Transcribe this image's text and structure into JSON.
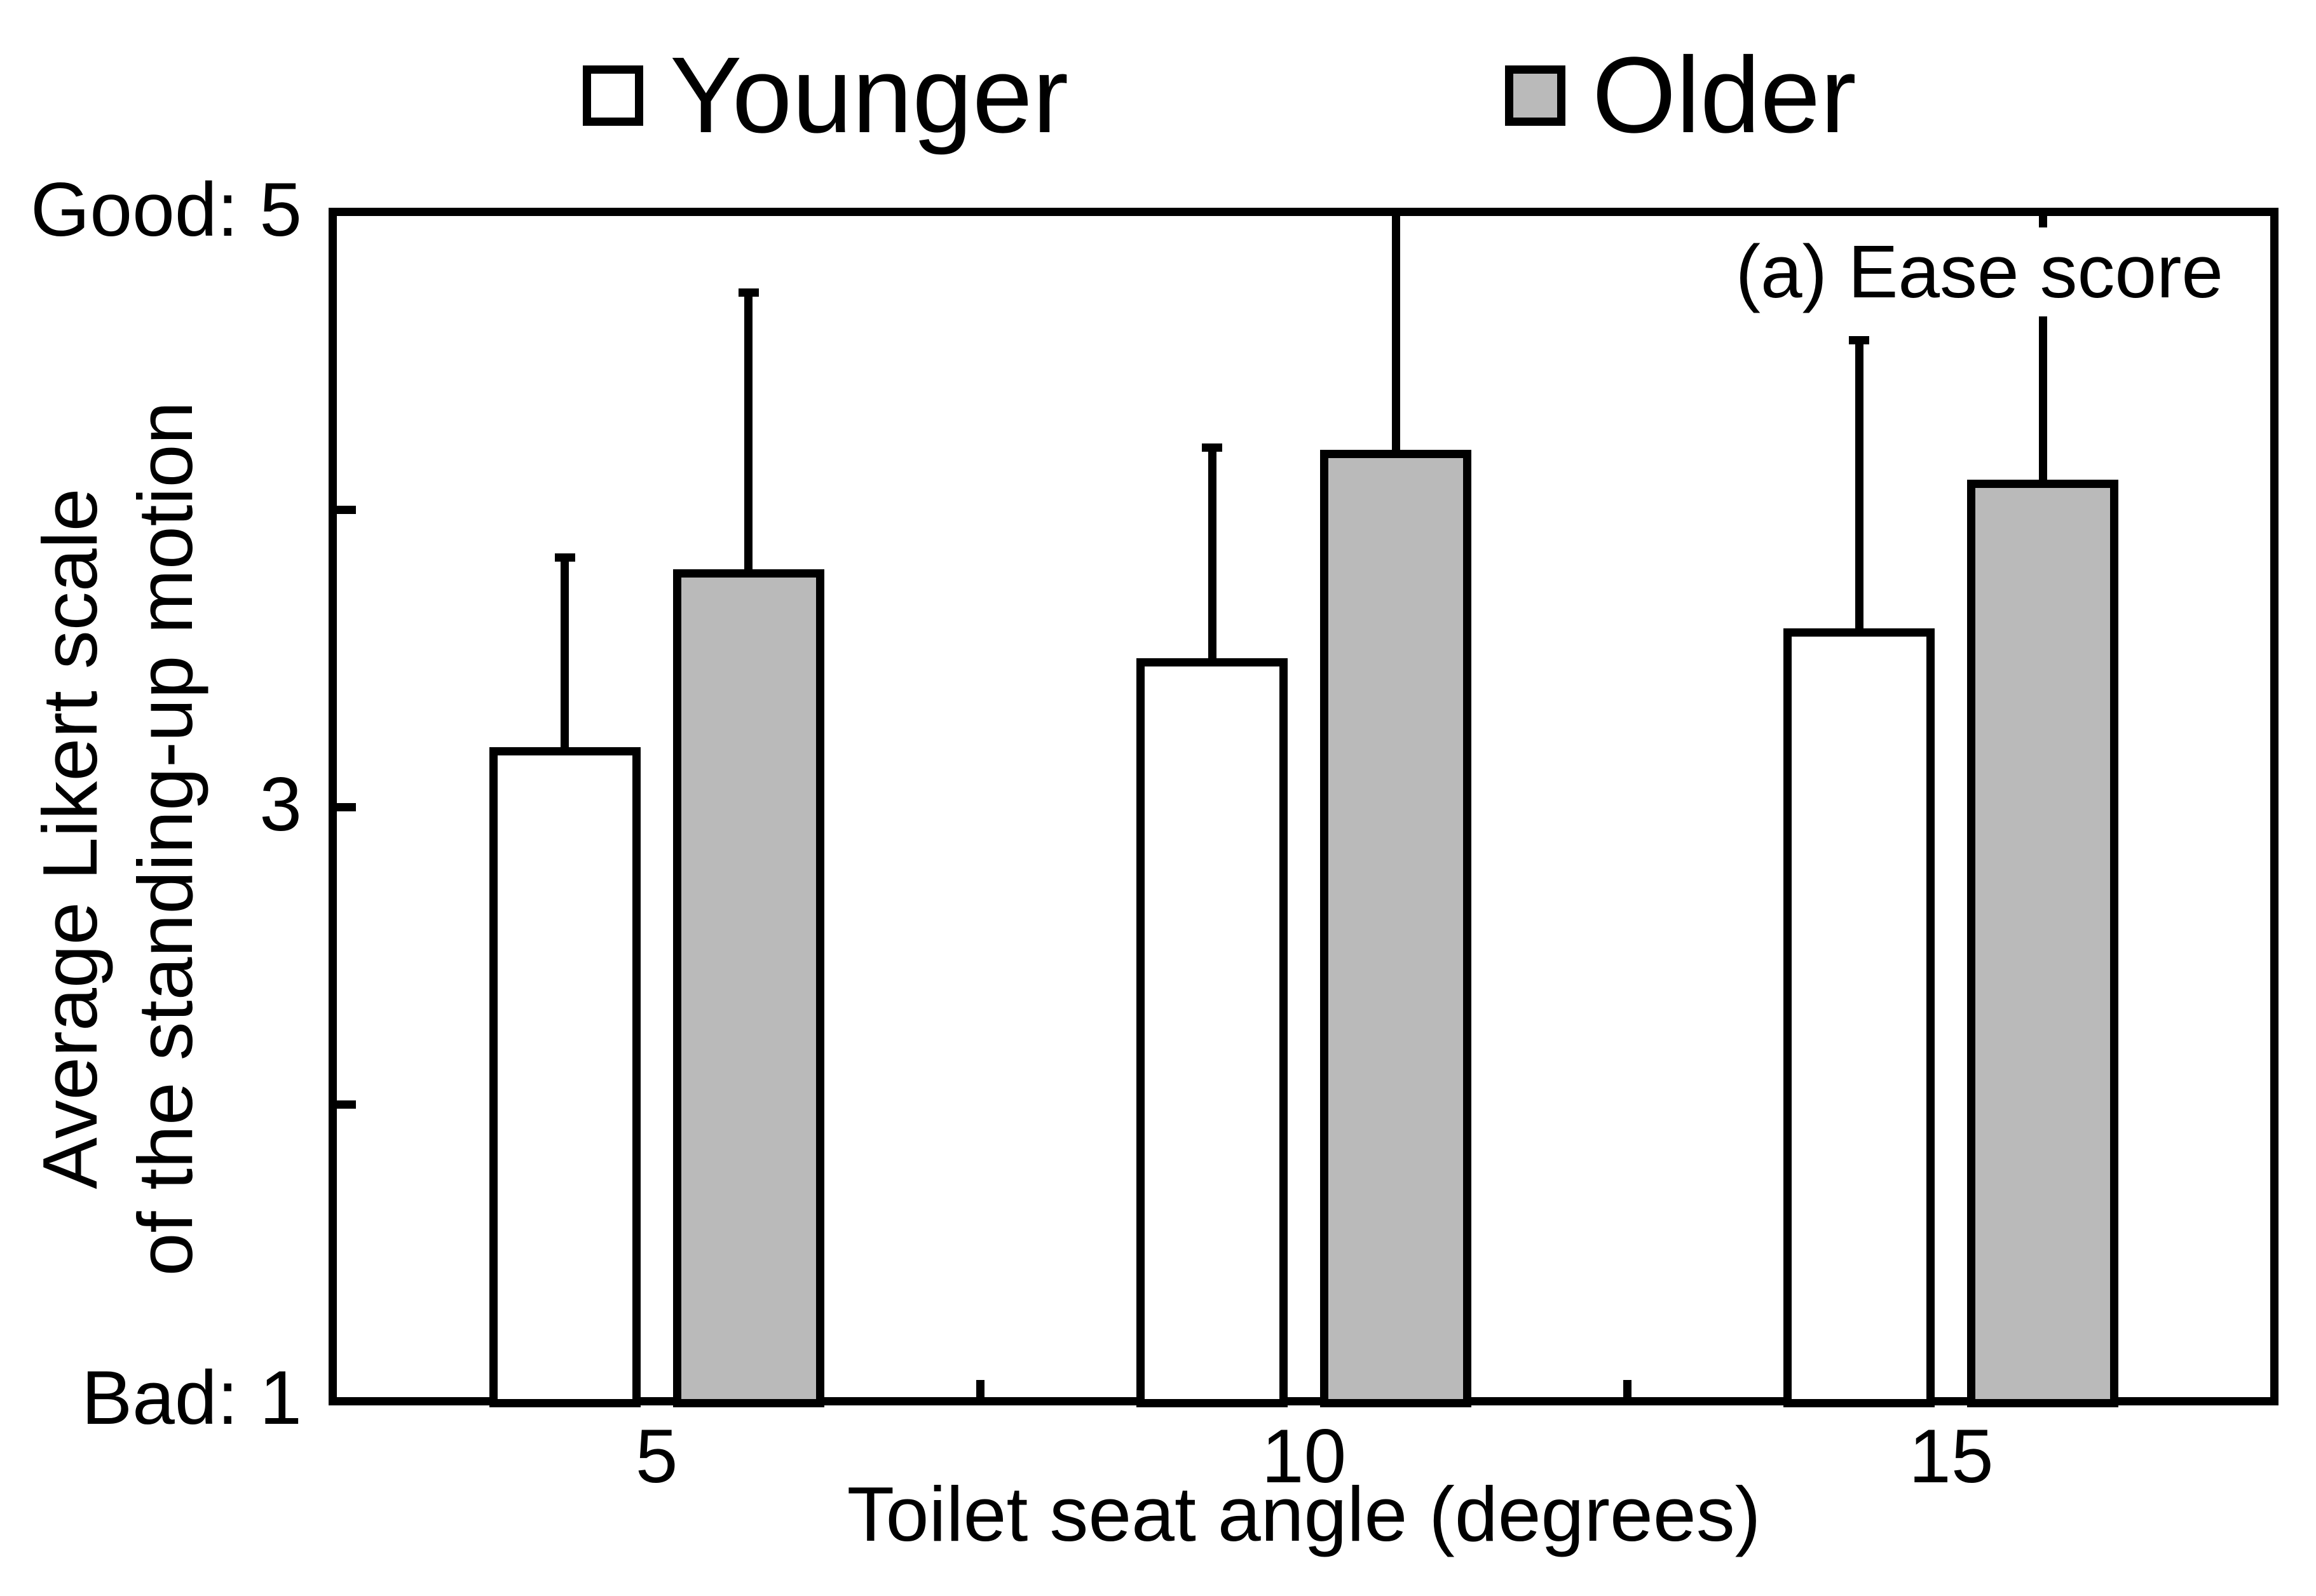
{
  "figure": {
    "panel_label": "(a) Ease score",
    "x_axis_title": "Toilet seat angle (degrees)",
    "y_axis_title_line1": "Average Likert scale",
    "y_axis_title_line2": "of the standing-up motion",
    "y_tick_top": "Good: 5",
    "y_tick_mid": "3",
    "y_tick_bottom": "Bad: 1"
  },
  "legend": {
    "younger_label": "Younger",
    "older_label": "Older"
  },
  "colors": {
    "younger_fill": "#ffffff",
    "older_fill": "#bababa",
    "ink": "#000000"
  },
  "chart_data": {
    "type": "bar",
    "categories": [
      "5",
      "10",
      "15"
    ],
    "xlabel": "Toilet seat angle (degrees)",
    "ylabel": "Average Likert scale of the standing-up motion",
    "ylim": [
      1,
      5
    ],
    "yticks": [
      1,
      2,
      3,
      4,
      5
    ],
    "ytick_labels": {
      "1": "Bad: 1",
      "3": "3",
      "5": "Good: 5"
    },
    "grid": false,
    "legend_position": "top",
    "annotation": "(a) Ease score",
    "series": [
      {
        "name": "Younger",
        "fill": "#ffffff",
        "values": [
          3.2,
          3.5,
          3.6
        ],
        "error_top": [
          3.84,
          4.21,
          4.57
        ],
        "error_capped": [
          true,
          true,
          true
        ]
      },
      {
        "name": "Older",
        "fill": "#bababa",
        "values": [
          3.8,
          4.2,
          4.1
        ],
        "error_top": [
          4.73,
          5.0,
          5.0
        ],
        "error_capped": [
          true,
          false,
          false
        ]
      }
    ]
  }
}
